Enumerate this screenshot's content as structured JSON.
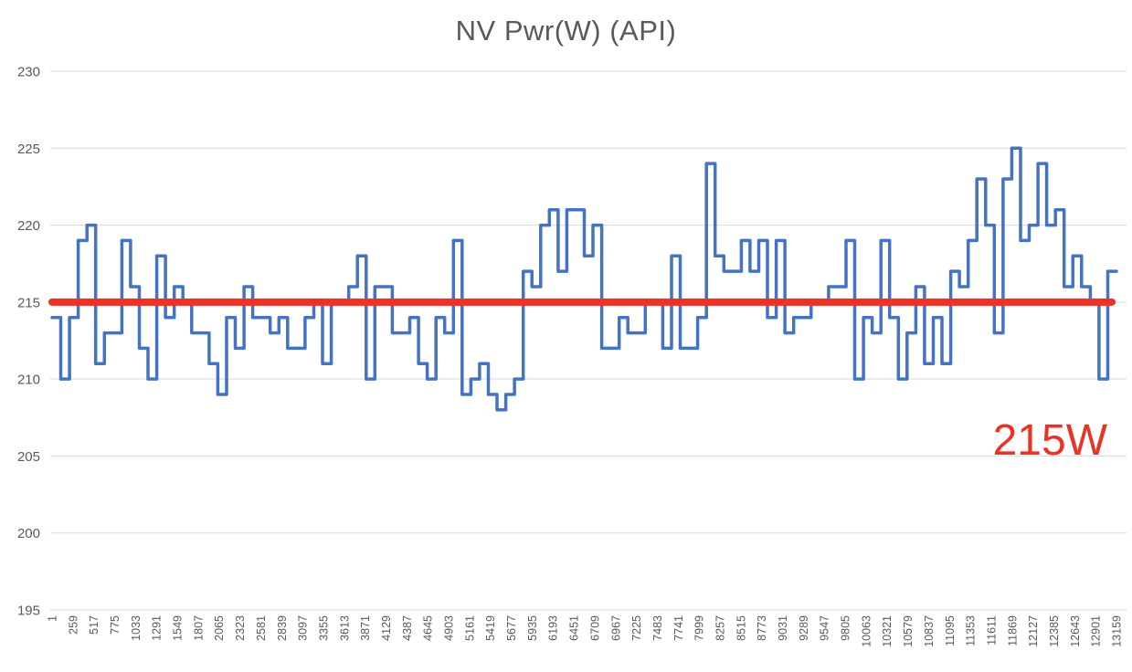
{
  "chart_data": {
    "type": "line",
    "subtype": "step",
    "title": "NV Pwr(W) (API)",
    "xlabel": "",
    "ylabel": "",
    "ylim": [
      195,
      230
    ],
    "y_ticks": [
      195,
      200,
      205,
      210,
      215,
      220,
      225,
      230
    ],
    "grid": true,
    "legend_position": "none",
    "x_tick_interval": 258,
    "x_tick_labels": [
      "1",
      "259",
      "517",
      "775",
      "1033",
      "1291",
      "1549",
      "1807",
      "2065",
      "2323",
      "2581",
      "2839",
      "3097",
      "3355",
      "3613",
      "3871",
      "4129",
      "4387",
      "4645",
      "4903",
      "5161",
      "5419",
      "5677",
      "5935",
      "6193",
      "6451",
      "6709",
      "6967",
      "7225",
      "7483",
      "7741",
      "7999",
      "8257",
      "8515",
      "8773",
      "9031",
      "9289",
      "9547",
      "9805",
      "10063",
      "10321",
      "10579",
      "10837",
      "11095",
      "11353",
      "11611",
      "11869",
      "12127",
      "12385",
      "12643",
      "12901",
      "13159"
    ],
    "series": [
      {
        "name": "NV Pwr(W) (API)",
        "color": "#4472C4",
        "values": [
          214,
          210,
          214,
          219,
          220,
          211,
          213,
          213,
          219,
          216,
          212,
          210,
          218,
          214,
          216,
          215,
          213,
          213,
          211,
          209,
          214,
          212,
          216,
          214,
          214,
          213,
          214,
          212,
          212,
          214,
          215,
          211,
          215,
          215,
          216,
          218,
          210,
          216,
          216,
          213,
          213,
          214,
          211,
          210,
          214,
          213,
          219,
          209,
          210,
          211,
          209,
          208,
          209,
          210,
          217,
          216,
          220,
          221,
          217,
          221,
          221,
          218,
          220,
          212,
          212,
          214,
          213,
          213,
          215,
          215,
          212,
          218,
          212,
          212,
          214,
          224,
          218,
          217,
          217,
          219,
          217,
          219,
          214,
          219,
          213,
          214,
          214,
          215,
          215,
          216,
          216,
          219,
          210,
          214,
          213,
          219,
          214,
          210,
          213,
          216,
          211,
          214,
          211,
          217,
          216,
          219,
          223,
          220,
          213,
          223,
          225,
          219,
          220,
          224,
          220,
          221,
          216,
          218,
          216,
          215,
          210,
          217
        ]
      }
    ],
    "reference_line": {
      "value": 215,
      "label": "215W",
      "color": "#ED3124"
    },
    "colors": {
      "series_blue": "#4472C4",
      "reference_red": "#ED3124",
      "gridline": "#D9D9D9",
      "axis_text": "#595959",
      "title_text": "#595959",
      "background": "#FFFFFF"
    }
  }
}
